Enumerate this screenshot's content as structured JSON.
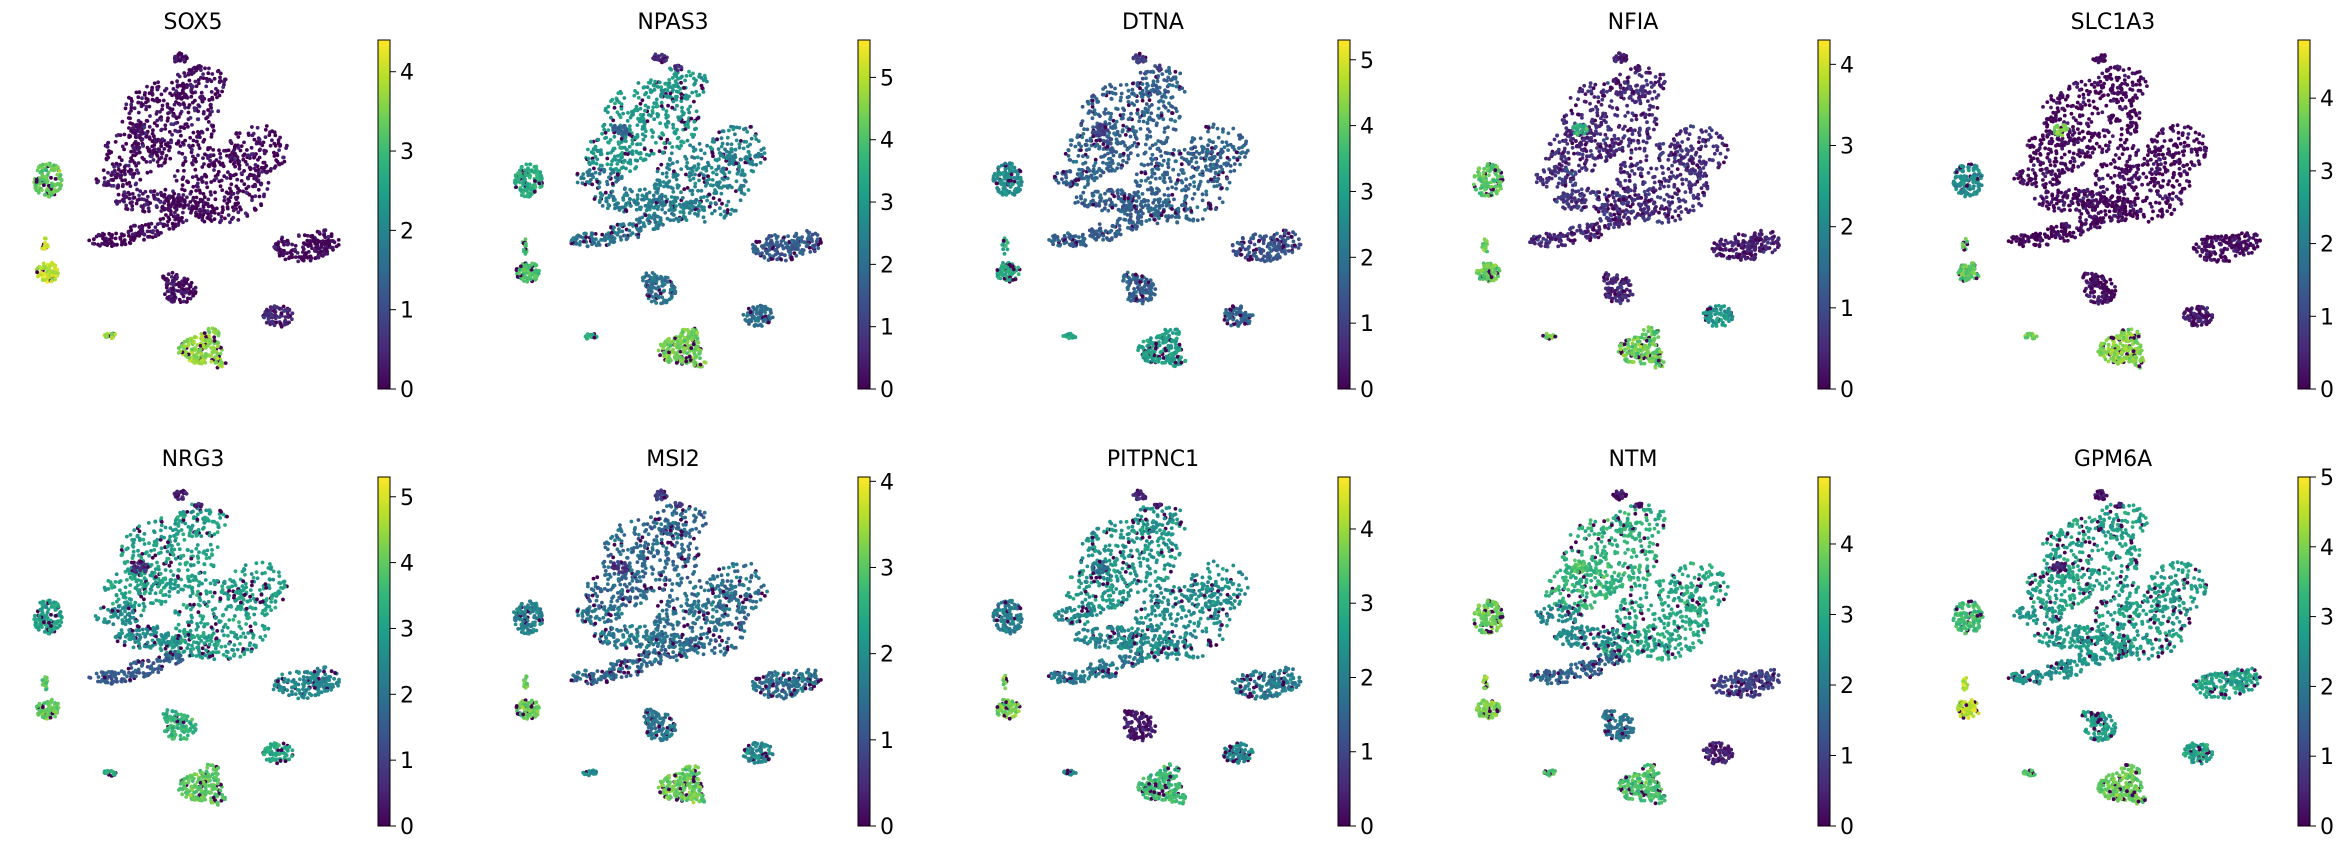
{
  "chart_data": [
    {
      "type": "scatter",
      "title": "SOX5",
      "colorbar": {
        "ticks": [
          0,
          1,
          2,
          3,
          4
        ],
        "max": 4.4
      },
      "cluster_levels": [
        0.15,
        0.1,
        0.2,
        0.1,
        3.3,
        0.2,
        4.0,
        0.15,
        3.7,
        0.5,
        3.8,
        0.15,
        0.3
      ]
    },
    {
      "type": "scatter",
      "title": "NPAS3",
      "colorbar": {
        "ticks": [
          0,
          1,
          2,
          3,
          4,
          5
        ],
        "max": 5.6
      },
      "cluster_levels": [
        3.0,
        2.5,
        2.3,
        2.2,
        3.5,
        2.1,
        4.0,
        1.6,
        4.4,
        2.0,
        3.6,
        0.8,
        1.8
      ]
    },
    {
      "type": "scatter",
      "title": "DTNA",
      "colorbar": {
        "ticks": [
          0,
          1,
          2,
          3,
          4,
          5
        ],
        "max": 5.3
      },
      "cluster_levels": [
        1.7,
        1.7,
        1.6,
        1.6,
        2.6,
        1.6,
        3.2,
        1.4,
        3.0,
        1.7,
        3.0,
        1.0,
        1.0
      ]
    },
    {
      "type": "scatter",
      "title": "NFIA",
      "colorbar": {
        "ticks": [
          0,
          1,
          2,
          3,
          4
        ],
        "max": 4.3
      },
      "cluster_levels": [
        0.5,
        0.6,
        0.7,
        0.5,
        3.2,
        0.5,
        3.3,
        0.4,
        3.3,
        2.2,
        3.4,
        0.3,
        2.8
      ]
    },
    {
      "type": "scatter",
      "title": "SLC1A3",
      "colorbar": {
        "ticks": [
          0,
          1,
          2,
          3,
          4
        ],
        "max": 4.8
      },
      "cluster_levels": [
        0.1,
        0.1,
        0.2,
        0.1,
        2.4,
        0.2,
        3.6,
        0.15,
        3.9,
        0.3,
        3.8,
        0.2,
        3.8
      ]
    },
    {
      "type": "scatter",
      "title": "NRG3",
      "colorbar": {
        "ticks": [
          0,
          1,
          2,
          3,
          4,
          5
        ],
        "max": 5.3
      },
      "cluster_levels": [
        3.0,
        3.0,
        2.6,
        1.6,
        3.0,
        3.5,
        4.0,
        2.5,
        4.0,
        3.2,
        3.3,
        0.5,
        0.7
      ]
    },
    {
      "type": "scatter",
      "title": "MSI2",
      "colorbar": {
        "ticks": [
          0,
          1,
          2,
          3,
          4
        ],
        "max": 4.05
      },
      "cluster_levels": [
        1.4,
        1.5,
        1.6,
        1.4,
        1.8,
        1.6,
        3.1,
        1.5,
        3.1,
        1.9,
        2.0,
        0.8,
        0.7
      ]
    },
    {
      "type": "scatter",
      "title": "PITPNC1",
      "colorbar": {
        "ticks": [
          0,
          1,
          2,
          3,
          4
        ],
        "max": 4.7
      },
      "cluster_levels": [
        2.5,
        2.3,
        2.2,
        1.9,
        2.0,
        0.3,
        3.7,
        2.0,
        3.2,
        2.2,
        2.2,
        0.4,
        1.8
      ]
    },
    {
      "type": "scatter",
      "title": "NTM",
      "colorbar": {
        "ticks": [
          0,
          1,
          2,
          3,
          4
        ],
        "max": 4.95
      },
      "cluster_levels": [
        3.2,
        3.0,
        2.4,
        1.6,
        3.8,
        1.9,
        4.0,
        1.0,
        3.5,
        0.4,
        3.5,
        0.3,
        3.5
      ]
    },
    {
      "type": "scatter",
      "title": "GPM6A",
      "colorbar": {
        "ticks": [
          0,
          1,
          2,
          3,
          4,
          5
        ],
        "max": 5.0
      },
      "cluster_levels": [
        2.9,
        2.8,
        2.7,
        2.6,
        3.5,
        2.8,
        4.5,
        2.9,
        3.8,
        2.9,
        3.6,
        0.3,
        0.5
      ]
    }
  ],
  "colormap": [
    "#440154",
    "#482878",
    "#3e4989",
    "#31688e",
    "#26828e",
    "#1f9e89",
    "#35b779",
    "#6ece58",
    "#b5de2b",
    "#fde725"
  ],
  "point_color_none": "#3e0a52"
}
